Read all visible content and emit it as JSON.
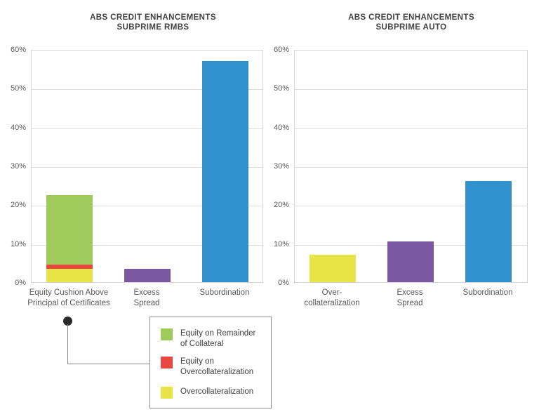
{
  "colors": {
    "background": "#ffffff",
    "grid": "#dedede",
    "plot_border": "#d6d6d6",
    "axis_text": "#5a5a5c",
    "title_text": "#414042",
    "legend_border": "#8e8e8e",
    "connector": "#8a8a8a",
    "connector_dot": "#2b2b2b",
    "green": "#9ecb5c",
    "red": "#e9473f",
    "yellow": "#e8e346",
    "purple": "#7c57a2",
    "blue": "#3190ce"
  },
  "chart_data": [
    {
      "type": "bar",
      "title": "ABS CREDIT ENHANCEMENTS",
      "subtitle": "SUBPRIME RMBS",
      "xlabel": "",
      "ylabel": "",
      "ylim": [
        0,
        60
      ],
      "ytick_step": 10,
      "ytick_suffix": "%",
      "grid": true,
      "legend_position": "bottom-left-callout",
      "bars": [
        {
          "label_lines": [
            "Equity Cushion Above",
            "Principal of Certificates"
          ],
          "total": 22.5,
          "segments": [
            {
              "name": "Overcollateralization",
              "value": 3.5,
              "color": "#e8e346"
            },
            {
              "name": "Equity on Overcollateralization",
              "value": 1.0,
              "color": "#e9473f"
            },
            {
              "name": "Equity on Remainder of Collateral",
              "value": 18.0,
              "color": "#9ecb5c"
            }
          ]
        },
        {
          "label_lines": [
            "Excess",
            "Spread"
          ],
          "total": 3.5,
          "segments": [
            {
              "name": "Excess Spread",
              "value": 3.5,
              "color": "#7c57a2"
            }
          ]
        },
        {
          "label_lines": [
            "Subordination"
          ],
          "total": 57.0,
          "segments": [
            {
              "name": "Subordination",
              "value": 57.0,
              "color": "#3190ce"
            }
          ]
        }
      ]
    },
    {
      "type": "bar",
      "title": "ABS CREDIT ENHANCEMENTS",
      "subtitle": "SUBPRIME AUTO",
      "xlabel": "",
      "ylabel": "",
      "ylim": [
        0,
        60
      ],
      "ytick_step": 10,
      "ytick_suffix": "%",
      "grid": true,
      "bars": [
        {
          "label_lines": [
            "Over-",
            "collateralization"
          ],
          "total": 7.0,
          "segments": [
            {
              "name": "Overcollateralization",
              "value": 7.0,
              "color": "#e8e346"
            }
          ]
        },
        {
          "label_lines": [
            "Excess",
            "Spread"
          ],
          "total": 10.5,
          "segments": [
            {
              "name": "Excess Spread",
              "value": 10.5,
              "color": "#7c57a2"
            }
          ]
        },
        {
          "label_lines": [
            "Subordination"
          ],
          "total": 26.0,
          "segments": [
            {
              "name": "Subordination",
              "value": 26.0,
              "color": "#3190ce"
            }
          ]
        }
      ]
    }
  ],
  "legend": {
    "items": [
      {
        "color": "#9ecb5c",
        "lines": [
          "Equity on Remainder",
          "of Collateral"
        ]
      },
      {
        "color": "#e9473f",
        "lines": [
          "Equity on",
          "Overcollateralization"
        ]
      },
      {
        "color": "#e8e346",
        "lines": [
          "Overcollateralization"
        ]
      }
    ]
  }
}
